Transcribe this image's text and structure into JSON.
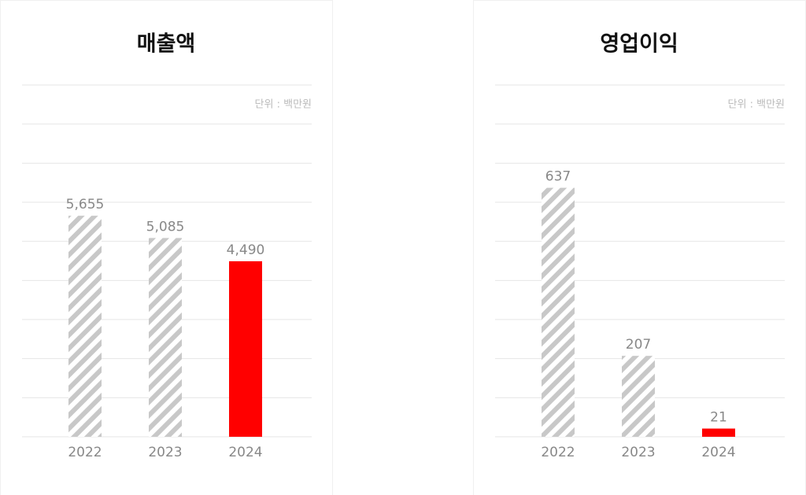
{
  "chart_data": [
    {
      "type": "bar",
      "title": "매출액",
      "unit_label": "단위 : 백만원",
      "categories": [
        "2022",
        "2023",
        "2024"
      ],
      "values": [
        5655,
        5085,
        4490
      ],
      "value_labels": [
        "5,655",
        "5,085",
        "4,490"
      ],
      "colors": [
        "#c8c8c8",
        "#c8c8c8",
        "#ff0000"
      ],
      "hatched": [
        true,
        true,
        false
      ],
      "ylim": [
        0,
        9000
      ]
    },
    {
      "type": "bar",
      "title": "영업이익",
      "unit_label": "단위 : 백만원",
      "categories": [
        "2022",
        "2023",
        "2024"
      ],
      "values": [
        637,
        207,
        21
      ],
      "colors": [
        "#c8c8c8",
        "#c8c8c8",
        "#ff0000"
      ],
      "hatched": [
        true,
        true,
        false
      ],
      "ylim": [
        0,
        900
      ]
    }
  ]
}
